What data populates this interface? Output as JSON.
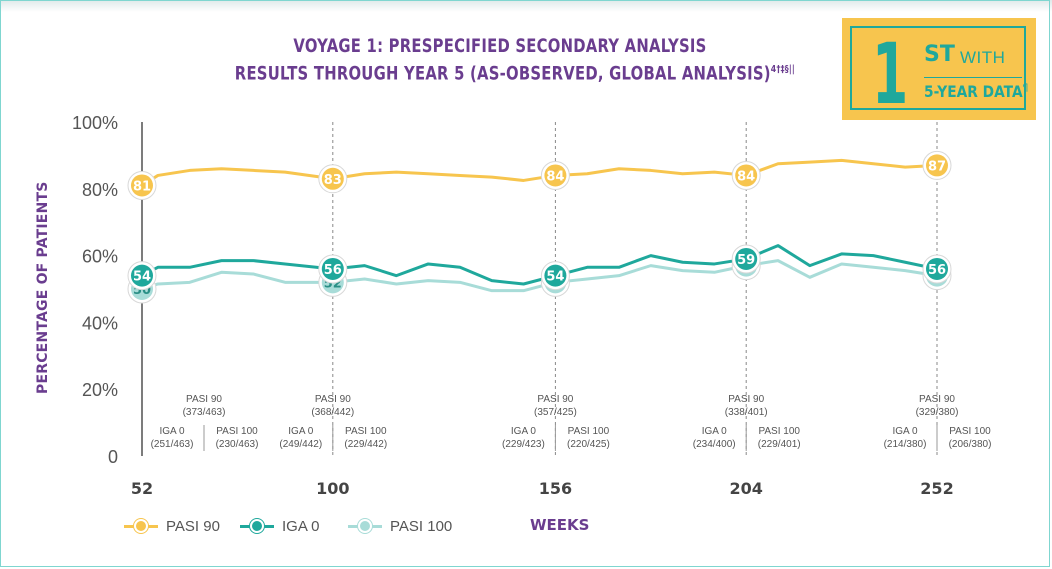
{
  "title": {
    "line1": "VOYAGE 1: PRESPECIFIED SECONDARY ANALYSIS",
    "line2": "RESULTS THROUGH YEAR 5 (AS-OBSERVED, GLOBAL ANALYSIS)",
    "line2_sup": "4†‡§||"
  },
  "badge": {
    "one": "1",
    "st": "ST",
    "with": "WITH",
    "five_year": "5-YEAR DATA",
    "five_year_sup": "¶"
  },
  "colors": {
    "pasi90": "#f7c54e",
    "iga0": "#1fa89c",
    "pasi100": "#a8dcd8",
    "title": "#6a3d8f"
  },
  "chart_data": {
    "type": "line",
    "ylabel": "PERCENTAGE OF PATIENTS",
    "xlabel": "WEEKS",
    "ylim": [
      0,
      100
    ],
    "xlim": [
      52,
      252
    ],
    "yticks": [
      "0",
      "20%",
      "40%",
      "60%",
      "80%",
      "100%"
    ],
    "xticks": [
      52,
      100,
      156,
      204,
      252
    ],
    "grid": "vertical dashed at labeled weeks",
    "legend_position": "bottom-left",
    "series": [
      {
        "name": "PASI 90",
        "color": "#f7c54e",
        "x": [
          52,
          56,
          64,
          72,
          80,
          88,
          100,
          108,
          116,
          124,
          132,
          140,
          148,
          156,
          164,
          172,
          180,
          188,
          196,
          204,
          212,
          220,
          228,
          236,
          244,
          252
        ],
        "y": [
          81,
          84,
          85.5,
          86,
          85.5,
          85,
          83,
          84.5,
          85,
          84.5,
          84,
          83.5,
          82.5,
          84,
          84.5,
          86,
          85.5,
          84.5,
          85,
          84,
          87.5,
          88,
          88.5,
          87.5,
          86.5,
          87
        ],
        "labeled": [
          {
            "x": 52,
            "label": "81"
          },
          {
            "x": 100,
            "label": "83"
          },
          {
            "x": 156,
            "label": "84"
          },
          {
            "x": 204,
            "label": "84"
          },
          {
            "x": 252,
            "label": "87"
          }
        ]
      },
      {
        "name": "IGA 0",
        "color": "#1fa89c",
        "x": [
          52,
          56,
          64,
          72,
          80,
          88,
          100,
          108,
          116,
          124,
          132,
          140,
          148,
          156,
          164,
          172,
          180,
          188,
          196,
          204,
          212,
          220,
          228,
          236,
          244,
          252
        ],
        "y": [
          54,
          56.5,
          56.5,
          58.5,
          58.5,
          57.5,
          56,
          57,
          54,
          57.5,
          56.5,
          52.5,
          51.5,
          54,
          56.5,
          56.5,
          60,
          58,
          57.5,
          59,
          63,
          57,
          60.5,
          60,
          58,
          56
        ],
        "labeled": [
          {
            "x": 52,
            "label": "54"
          },
          {
            "x": 100,
            "label": "56"
          },
          {
            "x": 156,
            "label": "54"
          },
          {
            "x": 204,
            "label": "59"
          },
          {
            "x": 252,
            "label": "56"
          }
        ]
      },
      {
        "name": "PASI 100",
        "color": "#a8dcd8",
        "x": [
          52,
          56,
          64,
          72,
          80,
          88,
          100,
          108,
          116,
          124,
          132,
          140,
          148,
          156,
          164,
          172,
          180,
          188,
          196,
          204,
          212,
          220,
          228,
          236,
          244,
          252
        ],
        "y": [
          50,
          51.5,
          52,
          55,
          54.5,
          52,
          52,
          53,
          51.5,
          52.5,
          52,
          49.5,
          49.5,
          52,
          53,
          54,
          57,
          55.5,
          55,
          57,
          58.5,
          53.5,
          57.5,
          56.5,
          55.5,
          54
        ],
        "labeled": [
          {
            "x": 52,
            "label": "50"
          },
          {
            "x": 100,
            "label": "52"
          },
          {
            "x": 156,
            "label": "52"
          },
          {
            "x": 204,
            "label": "57"
          },
          {
            "x": 252,
            "label": "54"
          }
        ]
      }
    ],
    "annotations": [
      {
        "x": 52,
        "pasi90": [
          "PASI 90",
          "(373/463)"
        ],
        "iga0": [
          "IGA 0",
          "(251/463)"
        ],
        "pasi100": [
          "PASI 100",
          "(230/463)"
        ]
      },
      {
        "x": 100,
        "pasi90": [
          "PASI 90",
          "(368/442)"
        ],
        "iga0": [
          "IGA 0",
          "(249/442)"
        ],
        "pasi100": [
          "PASI 100",
          "(229/442)"
        ]
      },
      {
        "x": 156,
        "pasi90": [
          "PASI 90",
          "(357/425)"
        ],
        "iga0": [
          "IGA 0",
          "(229/423)"
        ],
        "pasi100": [
          "PASI 100",
          "(220/425)"
        ]
      },
      {
        "x": 204,
        "pasi90": [
          "PASI 90",
          "(338/401)"
        ],
        "iga0": [
          "IGA 0",
          "(234/400)"
        ],
        "pasi100": [
          "PASI 100",
          "(229/401)"
        ]
      },
      {
        "x": 252,
        "pasi90": [
          "PASI 90",
          "(329/380)"
        ],
        "iga0": [
          "IGA 0",
          "(214/380)"
        ],
        "pasi100": [
          "PASI 100",
          "(206/380)"
        ]
      }
    ]
  },
  "legend": [
    {
      "name": "PASI 90",
      "key": "pasi90"
    },
    {
      "name": "IGA 0",
      "key": "iga0"
    },
    {
      "name": "PASI 100",
      "key": "pasi100"
    }
  ]
}
